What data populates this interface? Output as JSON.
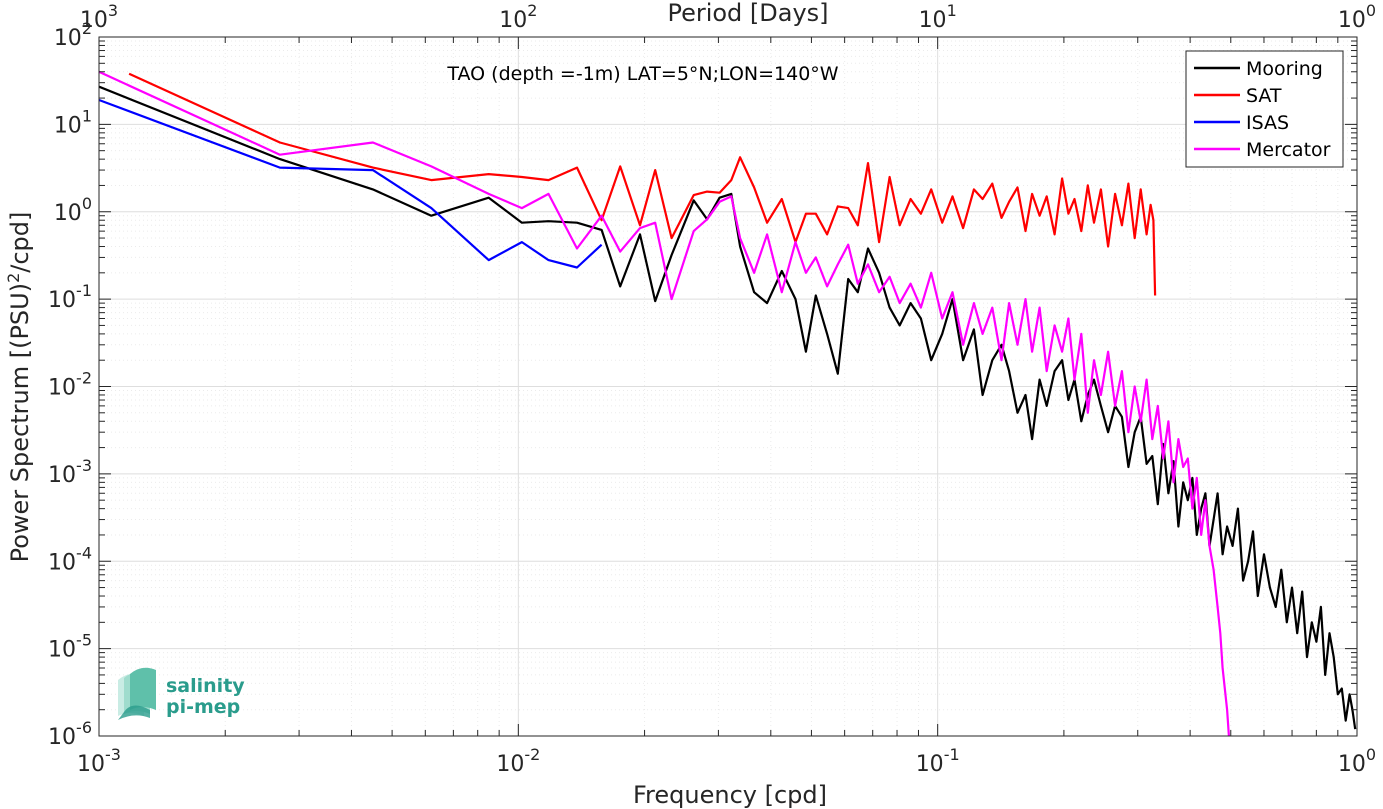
{
  "chart_data": {
    "type": "line",
    "title": "",
    "annotation": "TAO (depth =-1m) LAT=5°N;LON=140°W",
    "xlabel": "Frequency [cpd]",
    "xlabel_top": "Period [Days]",
    "ylabel_parts": [
      "Power Spectrum [(PSU)",
      "2",
      "/cpd]"
    ],
    "x_scale": "log",
    "y_scale": "log",
    "xlim": [
      0.001,
      1
    ],
    "ylim": [
      1e-06,
      100
    ],
    "x_ticks": [
      {
        "value": 0.001,
        "base": "10",
        "exp": "-3"
      },
      {
        "value": 0.01,
        "base": "10",
        "exp": "-2"
      },
      {
        "value": 0.1,
        "base": "10",
        "exp": "-1"
      },
      {
        "value": 1,
        "base": "10",
        "exp": "0"
      }
    ],
    "top_ticks": [
      {
        "value": 0.001,
        "base": "10",
        "exp": "3"
      },
      {
        "value": 0.01,
        "base": "10",
        "exp": "2"
      },
      {
        "value": 0.1,
        "base": "10",
        "exp": "1"
      },
      {
        "value": 1,
        "base": "10",
        "exp": "0"
      }
    ],
    "y_ticks": [
      {
        "value": 100,
        "base": "10",
        "exp": "2"
      },
      {
        "value": 10,
        "base": "10",
        "exp": "1"
      },
      {
        "value": 1,
        "base": "10",
        "exp": "0"
      },
      {
        "value": 0.1,
        "base": "10",
        "exp": "-1"
      },
      {
        "value": 0.01,
        "base": "10",
        "exp": "-2"
      },
      {
        "value": 0.001,
        "base": "10",
        "exp": "-3"
      },
      {
        "value": 0.0001,
        "base": "10",
        "exp": "-4"
      },
      {
        "value": 1e-05,
        "base": "10",
        "exp": "-5"
      },
      {
        "value": 1e-06,
        "base": "10",
        "exp": "-6"
      }
    ],
    "grid": true,
    "legend_position": "top-right",
    "series": [
      {
        "name": "Mooring",
        "color": "#000000",
        "x": [
          0.001,
          0.0027,
          0.0045,
          0.0062,
          0.0085,
          0.0102,
          0.0118,
          0.0138,
          0.0158,
          0.0175,
          0.0195,
          0.0212,
          0.0232,
          0.0262,
          0.0282,
          0.0302,
          0.0322,
          0.0338,
          0.0365,
          0.0392,
          0.0425,
          0.0458,
          0.0485,
          0.0512,
          0.0545,
          0.0578,
          0.0612,
          0.0645,
          0.0682,
          0.0725,
          0.0768,
          0.0812,
          0.0862,
          0.0912,
          0.0965,
          0.1025,
          0.1085,
          0.115,
          0.122,
          0.128,
          0.135,
          0.142,
          0.148,
          0.155,
          0.162,
          0.168,
          0.175,
          0.182,
          0.19,
          0.198,
          0.205,
          0.212,
          0.22,
          0.228,
          0.236,
          0.245,
          0.255,
          0.265,
          0.275,
          0.285,
          0.295,
          0.305,
          0.315,
          0.325,
          0.335,
          0.345,
          0.355,
          0.365,
          0.375,
          0.385,
          0.395,
          0.405,
          0.415,
          0.425,
          0.435,
          0.445,
          0.455,
          0.465,
          0.478,
          0.49,
          0.505,
          0.52,
          0.535,
          0.55,
          0.565,
          0.58,
          0.6,
          0.62,
          0.64,
          0.66,
          0.68,
          0.7,
          0.72,
          0.74,
          0.76,
          0.78,
          0.8,
          0.82,
          0.84,
          0.86,
          0.88,
          0.9,
          0.92,
          0.94,
          0.96,
          0.975,
          0.99
        ],
        "values": [
          27,
          4,
          1.8,
          0.9,
          1.45,
          0.75,
          0.78,
          0.75,
          0.62,
          0.14,
          0.55,
          0.095,
          0.32,
          1.35,
          0.82,
          1.45,
          1.6,
          0.4,
          0.12,
          0.09,
          0.21,
          0.1,
          0.025,
          0.11,
          0.04,
          0.014,
          0.17,
          0.12,
          0.38,
          0.2,
          0.08,
          0.05,
          0.09,
          0.06,
          0.02,
          0.04,
          0.1,
          0.02,
          0.045,
          0.008,
          0.02,
          0.03,
          0.015,
          0.005,
          0.008,
          0.0025,
          0.012,
          0.006,
          0.015,
          0.02,
          0.007,
          0.012,
          0.004,
          0.008,
          0.012,
          0.006,
          0.003,
          0.006,
          0.0045,
          0.0012,
          0.003,
          0.0045,
          0.0013,
          0.0016,
          0.00045,
          0.0022,
          0.0006,
          0.0014,
          0.00025,
          0.0008,
          0.0005,
          0.0009,
          0.0002,
          0.0004,
          0.0006,
          0.00015,
          0.0003,
          0.0006,
          0.00012,
          0.00025,
          0.00015,
          0.0004,
          6e-05,
          0.0001,
          0.00022,
          4e-05,
          0.00012,
          5e-05,
          3e-05,
          8e-05,
          2e-05,
          5e-05,
          1.5e-05,
          4.5e-05,
          8e-06,
          2e-05,
          1.2e-05,
          3e-05,
          5e-06,
          1.5e-05,
          8e-06,
          3e-06,
          3.5e-06,
          1.5e-06,
          3e-06,
          2e-06,
          1.2e-06
        ]
      },
      {
        "name": "SAT",
        "color": "#ff0000",
        "x": [
          0.00118,
          0.0027,
          0.0045,
          0.0062,
          0.0085,
          0.0102,
          0.0118,
          0.0138,
          0.0158,
          0.0175,
          0.0195,
          0.0212,
          0.0232,
          0.0262,
          0.0282,
          0.0302,
          0.0322,
          0.0338,
          0.0365,
          0.0392,
          0.0425,
          0.0458,
          0.0485,
          0.0512,
          0.0545,
          0.0578,
          0.0612,
          0.0645,
          0.0682,
          0.0725,
          0.0768,
          0.0812,
          0.0862,
          0.0912,
          0.0965,
          0.1025,
          0.1085,
          0.115,
          0.122,
          0.128,
          0.135,
          0.142,
          0.148,
          0.155,
          0.162,
          0.168,
          0.175,
          0.182,
          0.19,
          0.198,
          0.205,
          0.212,
          0.22,
          0.228,
          0.236,
          0.245,
          0.255,
          0.265,
          0.275,
          0.285,
          0.295,
          0.305,
          0.315,
          0.322,
          0.327,
          0.33
        ],
        "values": [
          38,
          6.2,
          3.2,
          2.3,
          2.7,
          2.5,
          2.3,
          3.2,
          0.8,
          3.3,
          0.7,
          3.0,
          0.5,
          1.55,
          1.7,
          1.65,
          2.3,
          4.2,
          1.9,
          0.75,
          1.4,
          0.45,
          0.95,
          0.95,
          0.55,
          1.15,
          1.1,
          0.7,
          3.6,
          0.45,
          2.5,
          0.7,
          1.4,
          0.95,
          1.8,
          0.75,
          1.5,
          0.65,
          1.8,
          1.4,
          2.1,
          0.85,
          1.3,
          1.9,
          0.6,
          1.6,
          0.9,
          1.5,
          0.55,
          2.4,
          0.95,
          1.4,
          0.6,
          2.0,
          0.75,
          1.8,
          0.4,
          1.6,
          0.7,
          2.1,
          0.5,
          1.8,
          0.55,
          1.2,
          0.8,
          0.11
        ]
      },
      {
        "name": "ISAS",
        "color": "#0000ff",
        "x": [
          0.001,
          0.0027,
          0.0045,
          0.0062,
          0.0085,
          0.0102,
          0.0118,
          0.0138,
          0.0158
        ],
        "values": [
          19,
          3.2,
          3.0,
          1.1,
          0.28,
          0.45,
          0.28,
          0.23,
          0.42
        ]
      },
      {
        "name": "Mercator",
        "color": "#ff00ff",
        "x": [
          0.001,
          0.0027,
          0.0045,
          0.0062,
          0.0085,
          0.0102,
          0.0118,
          0.0138,
          0.0158,
          0.0175,
          0.0195,
          0.0212,
          0.0232,
          0.0262,
          0.0282,
          0.0302,
          0.0322,
          0.0338,
          0.0365,
          0.0392,
          0.0425,
          0.0458,
          0.0485,
          0.0512,
          0.0545,
          0.0578,
          0.0612,
          0.0645,
          0.0682,
          0.0725,
          0.0768,
          0.0812,
          0.0862,
          0.0912,
          0.0965,
          0.1025,
          0.1085,
          0.115,
          0.122,
          0.128,
          0.135,
          0.142,
          0.148,
          0.155,
          0.162,
          0.168,
          0.175,
          0.182,
          0.19,
          0.198,
          0.205,
          0.212,
          0.22,
          0.228,
          0.236,
          0.245,
          0.255,
          0.265,
          0.275,
          0.285,
          0.295,
          0.305,
          0.315,
          0.325,
          0.335,
          0.345,
          0.355,
          0.365,
          0.375,
          0.385,
          0.395,
          0.405,
          0.415,
          0.425,
          0.435,
          0.445,
          0.455,
          0.465,
          0.472,
          0.478,
          0.484,
          0.49,
          0.495
        ],
        "values": [
          40,
          4.5,
          6.2,
          3.3,
          1.6,
          1.1,
          1.6,
          0.38,
          0.9,
          0.35,
          0.65,
          0.75,
          0.1,
          0.6,
          0.82,
          1.3,
          1.5,
          0.5,
          0.2,
          0.55,
          0.12,
          0.45,
          0.2,
          0.3,
          0.14,
          0.25,
          0.42,
          0.15,
          0.25,
          0.12,
          0.18,
          0.09,
          0.15,
          0.08,
          0.2,
          0.06,
          0.12,
          0.03,
          0.09,
          0.04,
          0.08,
          0.02,
          0.09,
          0.03,
          0.1,
          0.025,
          0.08,
          0.015,
          0.05,
          0.025,
          0.06,
          0.012,
          0.04,
          0.005,
          0.02,
          0.008,
          0.025,
          0.006,
          0.015,
          0.003,
          0.01,
          0.004,
          0.012,
          0.0025,
          0.006,
          0.0015,
          0.004,
          0.0008,
          0.0025,
          0.0012,
          0.0015,
          0.0004,
          0.0009,
          0.0002,
          0.0005,
          0.00015,
          8e-05,
          3e-05,
          1.5e-05,
          6e-06,
          3.5e-06,
          2e-06,
          1e-06
        ]
      }
    ]
  },
  "logo": {
    "line1": "salinity",
    "line2": "pi-mep"
  }
}
